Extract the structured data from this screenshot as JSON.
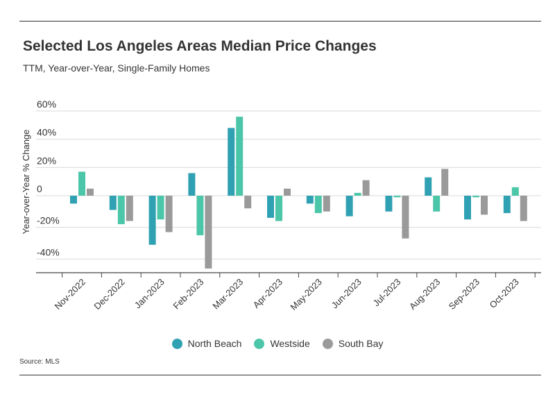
{
  "header": {
    "title": "Selected Los Angeles Areas Median Price Changes",
    "subtitle": "TTM, Year-over-Year, Single-Family Homes"
  },
  "footer": {
    "source": "Source: MLS"
  },
  "chart_data": {
    "type": "bar",
    "title": "Selected Los Angeles Areas Median Price Changes",
    "subtitle": "TTM, Year-over-Year, Single-Family Homes",
    "xlabel": "",
    "ylabel": "Year-over-Year % Change",
    "ylim": [
      -47,
      60
    ],
    "yticks": [
      60,
      40,
      20,
      0,
      -20,
      -40
    ],
    "ytick_labels": [
      "60%",
      "40%",
      "20%",
      "0",
      "-20%",
      "-40%"
    ],
    "grid": true,
    "legend": "bottom",
    "categories": [
      "Nov-2022",
      "Dec-2022",
      "Jan-2023",
      "Feb-2023",
      "Mar-2023",
      "Apr-2023",
      "May-2023",
      "Jun-2023",
      "Jul-2023",
      "Aug-2023",
      "Sep-2023",
      "Oct-2023"
    ],
    "series": [
      {
        "name": "North Beach",
        "color": "#2fa1b3",
        "values": [
          -5,
          -9,
          -31,
          16,
          48,
          -14,
          -5,
          -13,
          -10,
          13,
          -15,
          -11
        ]
      },
      {
        "name": "Westside",
        "color": "#4cc6a8",
        "values": [
          17,
          -18,
          -15,
          -25,
          56,
          -16,
          -11,
          2,
          -1,
          -10,
          -1,
          6
        ]
      },
      {
        "name": "South Bay",
        "color": "#9a9a9a",
        "values": [
          5,
          -16,
          -23,
          -46,
          -8,
          5,
          -10,
          11,
          -27,
          19,
          -12,
          -16
        ]
      }
    ]
  }
}
